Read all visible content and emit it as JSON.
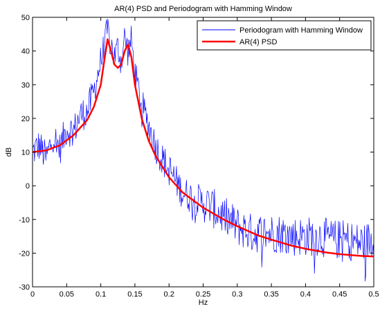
{
  "chart_data": {
    "type": "line",
    "title": "AR(4) PSD and Periodogram with Hamming Window",
    "xlabel": "Hz",
    "ylabel": "dB",
    "xlim": [
      0,
      0.5
    ],
    "ylim": [
      -30,
      50
    ],
    "xticks": [
      0,
      0.05,
      0.1,
      0.15,
      0.2,
      0.25,
      0.3,
      0.35,
      0.4,
      0.45,
      0.5
    ],
    "xtick_labels": [
      "0",
      "0.05",
      "0.1",
      "0.15",
      "0.2",
      "0.25",
      "0.3",
      "0.35",
      "0.4",
      "0.45",
      "0.5"
    ],
    "yticks": [
      -30,
      -20,
      -10,
      0,
      10,
      20,
      30,
      40,
      50
    ],
    "ytick_labels": [
      "-30",
      "-20",
      "-10",
      "0",
      "10",
      "20",
      "30",
      "40",
      "50"
    ],
    "grid": false,
    "legend_position": "top-right",
    "series": [
      {
        "name": "Periodogram with Hamming Window",
        "color": "#0000ff",
        "style": "thin",
        "x": [
          0,
          0.01,
          0.02,
          0.03,
          0.04,
          0.05,
          0.06,
          0.07,
          0.08,
          0.09,
          0.1,
          0.105,
          0.11,
          0.115,
          0.12,
          0.125,
          0.13,
          0.135,
          0.14,
          0.145,
          0.15,
          0.16,
          0.17,
          0.18,
          0.19,
          0.2,
          0.22,
          0.24,
          0.26,
          0.28,
          0.3,
          0.32,
          0.34,
          0.36,
          0.38,
          0.4,
          0.42,
          0.44,
          0.46,
          0.48,
          0.5
        ],
        "values": [
          10,
          12,
          8,
          15,
          11,
          17,
          16,
          21,
          22,
          28,
          37,
          41,
          46,
          42,
          38,
          41,
          37,
          44,
          40,
          43,
          33,
          24,
          18,
          12,
          8,
          5,
          -2,
          -4,
          -6,
          -9,
          -12,
          -14,
          -14,
          -14,
          -15,
          -15,
          -15,
          -16,
          -16,
          -17,
          -16
        ]
      },
      {
        "name": "AR(4) PSD",
        "color": "#ff0000",
        "style": "thick",
        "x": [
          0,
          0.02,
          0.04,
          0.06,
          0.08,
          0.09,
          0.1,
          0.105,
          0.11,
          0.115,
          0.12,
          0.125,
          0.13,
          0.135,
          0.14,
          0.145,
          0.15,
          0.16,
          0.17,
          0.18,
          0.2,
          0.22,
          0.25,
          0.28,
          0.3,
          0.33,
          0.35,
          0.38,
          0.4,
          0.43,
          0.45,
          0.48,
          0.5
        ],
        "values": [
          10,
          10.5,
          12,
          15,
          19.5,
          23.5,
          30,
          37,
          43.5,
          40,
          36,
          35,
          36,
          40,
          42,
          38,
          30,
          20,
          13.5,
          9,
          2.5,
          -2,
          -6.5,
          -10,
          -12,
          -14.7,
          -16,
          -17.8,
          -18.7,
          -19.8,
          -20.3,
          -20.8,
          -21
        ]
      }
    ]
  }
}
